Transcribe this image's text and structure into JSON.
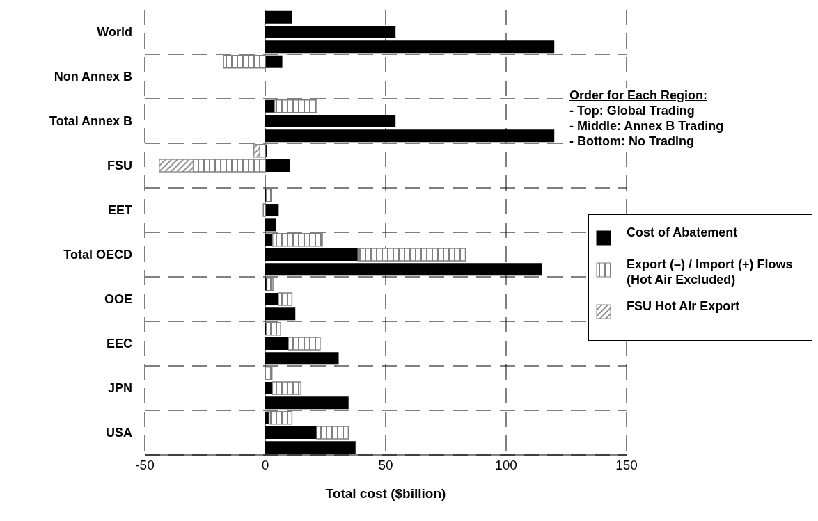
{
  "chart_data": {
    "type": "bar",
    "orientation": "horizontal",
    "stacked": true,
    "categories": [
      null,
      "World",
      null,
      null,
      "Non Annex B",
      null,
      null,
      "Total Annex B",
      null,
      null,
      "FSU",
      null,
      null,
      "EET",
      null,
      null,
      "Total OECD",
      null,
      null,
      "OOE",
      null,
      null,
      "EEC",
      null,
      null,
      "JPN",
      null,
      null,
      "USA",
      null
    ],
    "series": [
      {
        "name": "Cost of Abatement",
        "color": "#000000",
        "values": [
          11.1,
          54.1,
          120,
          7.1,
          null,
          null,
          3.9,
          54.1,
          120,
          0.8,
          10.3,
          null,
          0.5,
          5.6,
          4.6,
          3.1,
          38.5,
          115,
          0.7,
          5.5,
          12.5,
          0.5,
          9.6,
          30.5,
          null,
          3.0,
          34.6,
          1.6,
          21.4,
          37.5
        ]
      },
      {
        "name": "Export (–) / Import (+) Flows (Hot Air Excluded)",
        "color": "#808080",
        "values": [
          null,
          null,
          null,
          -17.3,
          null,
          null,
          17.5,
          null,
          null,
          -2.3,
          -29.9,
          null,
          2.1,
          -0.8,
          null,
          20.6,
          44.6,
          null,
          2.5,
          5.6,
          null,
          5.9,
          13.2,
          null,
          2.8,
          11.8,
          null,
          9.5,
          13.1,
          null
        ]
      },
      {
        "name": "FSU Hot Air Export",
        "color": "#909090",
        "values": [
          null,
          null,
          null,
          null,
          null,
          null,
          null,
          null,
          null,
          -2.4,
          -14.1,
          null,
          null,
          null,
          null,
          null,
          null,
          null,
          null,
          null,
          null,
          null,
          null,
          null,
          null,
          null,
          null,
          null,
          null,
          null
        ]
      }
    ],
    "xlabel": "Total cost ($billion)",
    "xlim": [
      -50,
      150
    ],
    "xticks": [
      -50,
      0,
      50,
      100,
      150
    ],
    "grid": true,
    "legend": "right",
    "annotations": [
      "Order for Each Region:",
      "- Top: Global Trading",
      "- Middle: Annex B Trading",
      "- Bottom: No Trading"
    ]
  }
}
